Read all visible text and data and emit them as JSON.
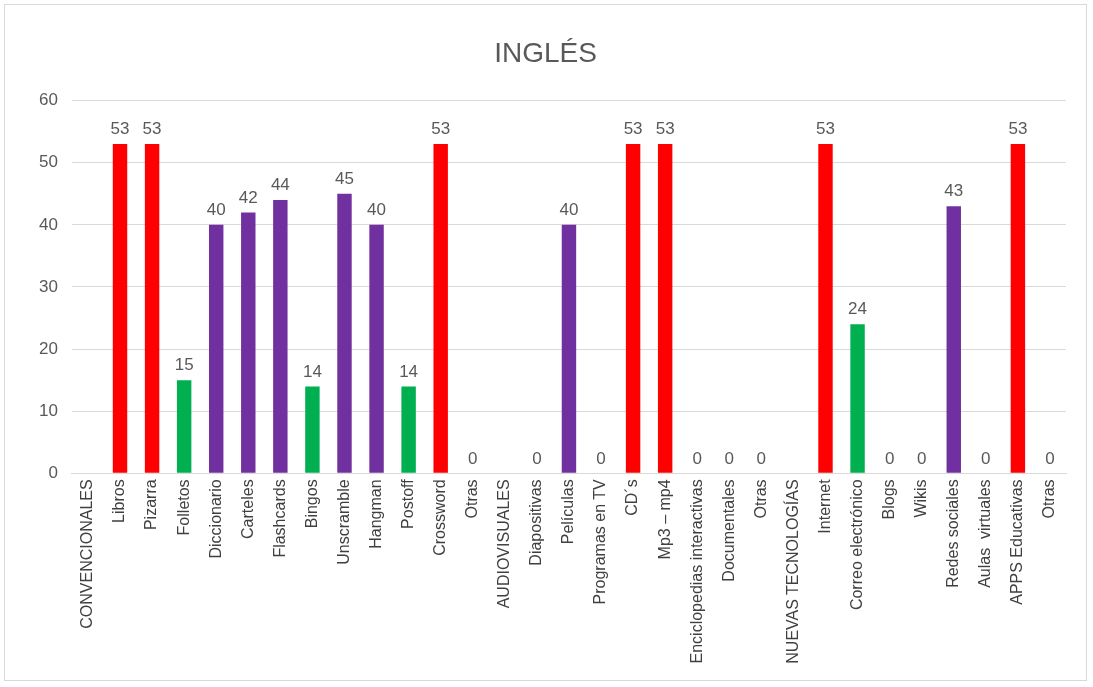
{
  "chart_data": {
    "type": "bar",
    "title": "INGLÉS",
    "categories": [
      "CONVENCIONALES",
      "Libros",
      "Pizarra",
      "Folletos",
      "Diccionario",
      "Carteles",
      "Flashcards",
      "Bingos",
      "Unscramble",
      "Hangman",
      "Postoff",
      "Crossword",
      "Otras",
      "AUDIOVISUALES",
      "Diapositivas",
      "Películas",
      "Programas en TV",
      "CD´s",
      "Mp3 – mp4",
      "Enciclopedias interactivas",
      "Documentales",
      "Otras",
      "NUEVAS TECNOLOGÍAS",
      "Internet",
      "Correo electrónico",
      "Blogs",
      "Wikis",
      "Redes sociales",
      "Aulas  virtuales",
      "APPS Educativas",
      "Otras"
    ],
    "values": [
      null,
      53,
      53,
      15,
      40,
      42,
      44,
      14,
      45,
      40,
      14,
      53,
      0,
      null,
      0,
      40,
      0,
      53,
      53,
      0,
      0,
      0,
      null,
      53,
      24,
      0,
      0,
      43,
      0,
      53,
      0
    ],
    "colors": [
      "#ff0000",
      "#ff0000",
      "#ff0000",
      "#00b050",
      "#7030a0",
      "#7030a0",
      "#7030a0",
      "#00b050",
      "#7030a0",
      "#7030a0",
      "#00b050",
      "#ff0000",
      "#ff0000",
      "#ff0000",
      "#ff0000",
      "#7030a0",
      "#ff0000",
      "#ff0000",
      "#ff0000",
      "#ff0000",
      "#ff0000",
      "#ff0000",
      "#ff0000",
      "#ff0000",
      "#00b050",
      "#ff0000",
      "#ff0000",
      "#7030a0",
      "#ff0000",
      "#ff0000",
      "#ff0000"
    ],
    "ylim": [
      0,
      60
    ],
    "yticks": [
      0,
      10,
      20,
      30,
      40,
      50,
      60
    ],
    "grid": "y",
    "legend": false,
    "data_labels": true
  }
}
